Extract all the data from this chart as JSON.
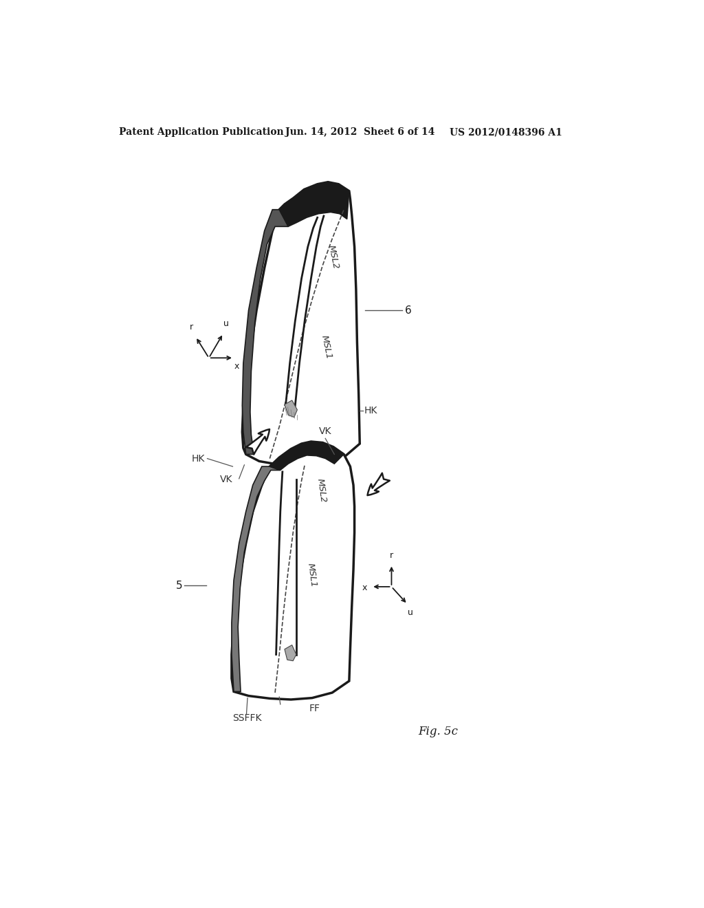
{
  "bg_color": "#ffffff",
  "header_left": "Patent Application Publication",
  "header_mid": "Jun. 14, 2012  Sheet 6 of 14",
  "header_right": "US 2012/0148396 A1",
  "fig_label": "Fig. 5c"
}
